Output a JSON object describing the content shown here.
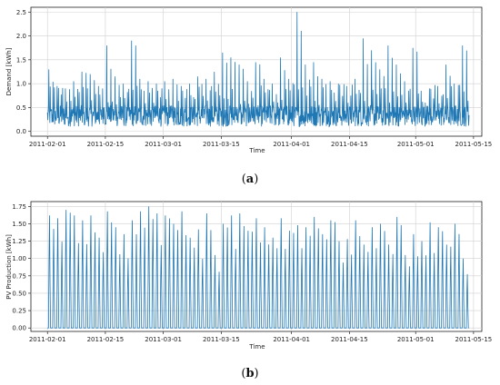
{
  "chart_data": [
    {
      "type": "line",
      "panel_label": "a",
      "xlabel": "Time",
      "ylabel": "Demand [kWh]",
      "x_ticks": [
        "2011-02-01",
        "2011-02-15",
        "2011-03-01",
        "2011-03-15",
        "2011-04-01",
        "2011-04-15",
        "2011-05-01",
        "2011-05-15"
      ],
      "x_range": [
        "2011-01-28",
        "2011-05-17"
      ],
      "y_ticks": [
        "0.0",
        "0.5",
        "1.0",
        "1.5",
        "2.0",
        "2.5"
      ],
      "ylim": [
        -0.1,
        2.6
      ],
      "grid": true,
      "series": [
        {
          "color": "#1f77b4",
          "x": [
            "2011-02-01",
            "2011-02-03",
            "2011-02-05",
            "2011-02-07",
            "2011-02-09",
            "2011-02-11",
            "2011-02-13",
            "2011-02-15",
            "2011-02-17",
            "2011-02-19",
            "2011-02-21",
            "2011-02-23",
            "2011-02-25",
            "2011-02-27",
            "2011-03-01",
            "2011-03-03",
            "2011-03-05",
            "2011-03-07",
            "2011-03-09",
            "2011-03-11",
            "2011-03-13",
            "2011-03-15",
            "2011-03-17",
            "2011-03-19",
            "2011-03-21",
            "2011-03-23",
            "2011-03-25",
            "2011-03-27",
            "2011-03-29",
            "2011-03-31",
            "2011-04-02",
            "2011-04-04",
            "2011-04-06",
            "2011-04-08",
            "2011-04-10",
            "2011-04-12",
            "2011-04-14",
            "2011-04-16",
            "2011-04-18",
            "2011-04-20",
            "2011-04-22",
            "2011-04-24",
            "2011-04-26",
            "2011-04-28",
            "2011-04-30",
            "2011-05-02",
            "2011-05-04",
            "2011-05-06",
            "2011-05-08",
            "2011-05-10",
            "2011-05-12"
          ],
          "values": [
            1.3,
            0.95,
            0.9,
            1.05,
            1.25,
            1.2,
            0.95,
            1.8,
            1.15,
            1.0,
            1.9,
            1.1,
            1.05,
            1.0,
            1.05,
            1.1,
            0.95,
            1.0,
            1.15,
            1.1,
            1.25,
            1.65,
            1.55,
            1.4,
            1.05,
            1.45,
            1.1,
            1.0,
            1.55,
            1.1,
            2.5,
            1.4,
            1.45,
            1.1,
            1.05,
            1.0,
            0.95,
            1.1,
            1.95,
            1.7,
            1.3,
            1.8,
            1.4,
            1.05,
            1.75,
            0.85,
            0.9,
            0.95,
            1.4,
            1.0,
            1.8
          ]
        }
      ]
    },
    {
      "type": "line",
      "panel_label": "b",
      "xlabel": "Time",
      "ylabel": "PV Production [kWh]",
      "x_ticks": [
        "2011-02-01",
        "2011-02-15",
        "2011-03-01",
        "2011-03-15",
        "2011-04-01",
        "2011-04-15",
        "2011-05-01",
        "2011-05-15"
      ],
      "x_range": [
        "2011-01-28",
        "2011-05-17"
      ],
      "y_ticks": [
        "0.00",
        "0.25",
        "0.50",
        "0.75",
        "1.00",
        "1.25",
        "1.50",
        "1.75"
      ],
      "ylim": [
        -0.05,
        1.82
      ],
      "grid": true,
      "series": [
        {
          "color": "#1f77b4",
          "x": [
            "2011-02-01",
            "2011-02-03",
            "2011-02-05",
            "2011-02-07",
            "2011-02-09",
            "2011-02-11",
            "2011-02-13",
            "2011-02-15",
            "2011-02-17",
            "2011-02-19",
            "2011-02-21",
            "2011-02-23",
            "2011-02-25",
            "2011-02-27",
            "2011-03-01",
            "2011-03-03",
            "2011-03-05",
            "2011-03-07",
            "2011-03-09",
            "2011-03-11",
            "2011-03-13",
            "2011-03-15",
            "2011-03-17",
            "2011-03-19",
            "2011-03-21",
            "2011-03-23",
            "2011-03-25",
            "2011-03-27",
            "2011-03-29",
            "2011-03-31",
            "2011-04-02",
            "2011-04-04",
            "2011-04-06",
            "2011-04-08",
            "2011-04-10",
            "2011-04-12",
            "2011-04-14",
            "2011-04-16",
            "2011-04-18",
            "2011-04-20",
            "2011-04-22",
            "2011-04-24",
            "2011-04-26",
            "2011-04-28",
            "2011-04-30",
            "2011-05-02",
            "2011-05-04",
            "2011-05-06",
            "2011-05-08",
            "2011-05-10",
            "2011-05-12"
          ],
          "values": [
            1.62,
            1.58,
            1.7,
            1.62,
            1.55,
            1.62,
            1.3,
            1.68,
            1.45,
            1.35,
            1.55,
            1.68,
            1.75,
            1.65,
            1.62,
            1.5,
            1.68,
            1.3,
            1.42,
            1.65,
            1.05,
            1.5,
            1.62,
            1.65,
            1.4,
            1.58,
            1.45,
            1.3,
            1.58,
            1.4,
            1.48,
            1.45,
            1.6,
            1.35,
            1.55,
            1.25,
            1.28,
            1.55,
            1.2,
            1.45,
            1.5,
            1.2,
            1.6,
            1.05,
            1.35,
            1.25,
            1.52,
            1.45,
            1.2,
            1.5,
            1.0
          ]
        }
      ]
    }
  ]
}
